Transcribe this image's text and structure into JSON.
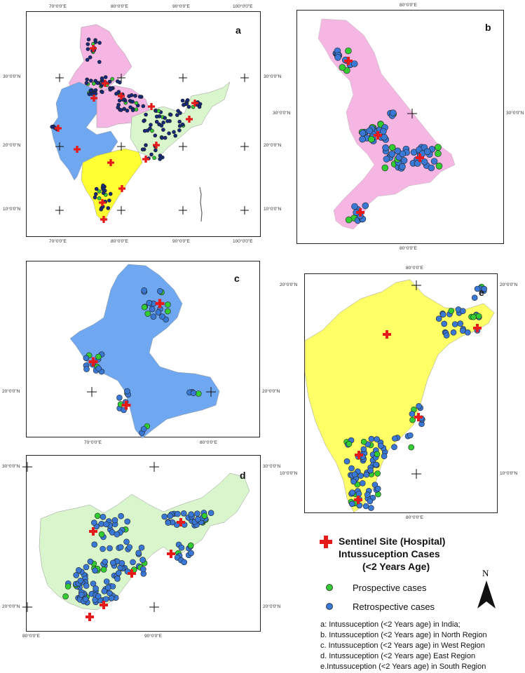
{
  "panels": {
    "a": {
      "label": "a",
      "lon_ticks": [
        "70°0'0\"E",
        "80°0'0\"E",
        "90°0'0\"E",
        "100°0'0\"E"
      ],
      "lat_ticks": [
        "30°0'0\"N",
        "20°0'0\"N",
        "10°0'0\"N"
      ]
    },
    "b": {
      "label": "b",
      "lon_ticks": [
        "80°0'0\"E"
      ],
      "lat_ticks": [
        "30°0'0\"N"
      ]
    },
    "c": {
      "label": "c",
      "lon_ticks": [
        "70°0'0\"E",
        "80°0'0\"E"
      ],
      "lat_ticks": [
        "20°0'0\"N"
      ]
    },
    "d": {
      "label": "d",
      "lon_ticks": [
        "80°0'0\"E",
        "90°0'0\"E"
      ],
      "lat_ticks": [
        "30°0'0\"N",
        "20°0'0\"N"
      ]
    },
    "e": {
      "label": "e",
      "lon_ticks": [
        "80°0'0\"E"
      ],
      "lat_ticks": [
        "20°0'0\"N",
        "10°0'0\"N"
      ]
    }
  },
  "legend": {
    "sentinel_label": "Sentinel Site (Hospital)",
    "title_line1": "Intussuception Cases",
    "title_line2": "(<2 Years Age)",
    "prospective_label": "Prospective cases",
    "retrospective_label": "Retrospective cases",
    "north_label": "N"
  },
  "captions": [
    "a: Intussuception (<2 Years age) in India;",
    "b. Intussuception (<2 Years age) in North Region",
    "c. Intussuception (<2 Years age) in West Region",
    "d. Intussuception (<2 Years age) East Region",
    "e.Intussuception (<2 Years age) in South Region"
  ],
  "colors": {
    "north": "#f6b6e3",
    "west": "#6fa8f0",
    "east": "#d8f5cc",
    "south": "#ffff33",
    "prospective": "#33cc33",
    "retrospective": "#3a78d6",
    "retrospective_dark": "#152a7a",
    "sentinel": "#e51b1b"
  },
  "icons": [
    "sentinel-cross-icon",
    "prospective-dot-icon",
    "retrospective-dot-icon",
    "north-arrow-icon"
  ]
}
